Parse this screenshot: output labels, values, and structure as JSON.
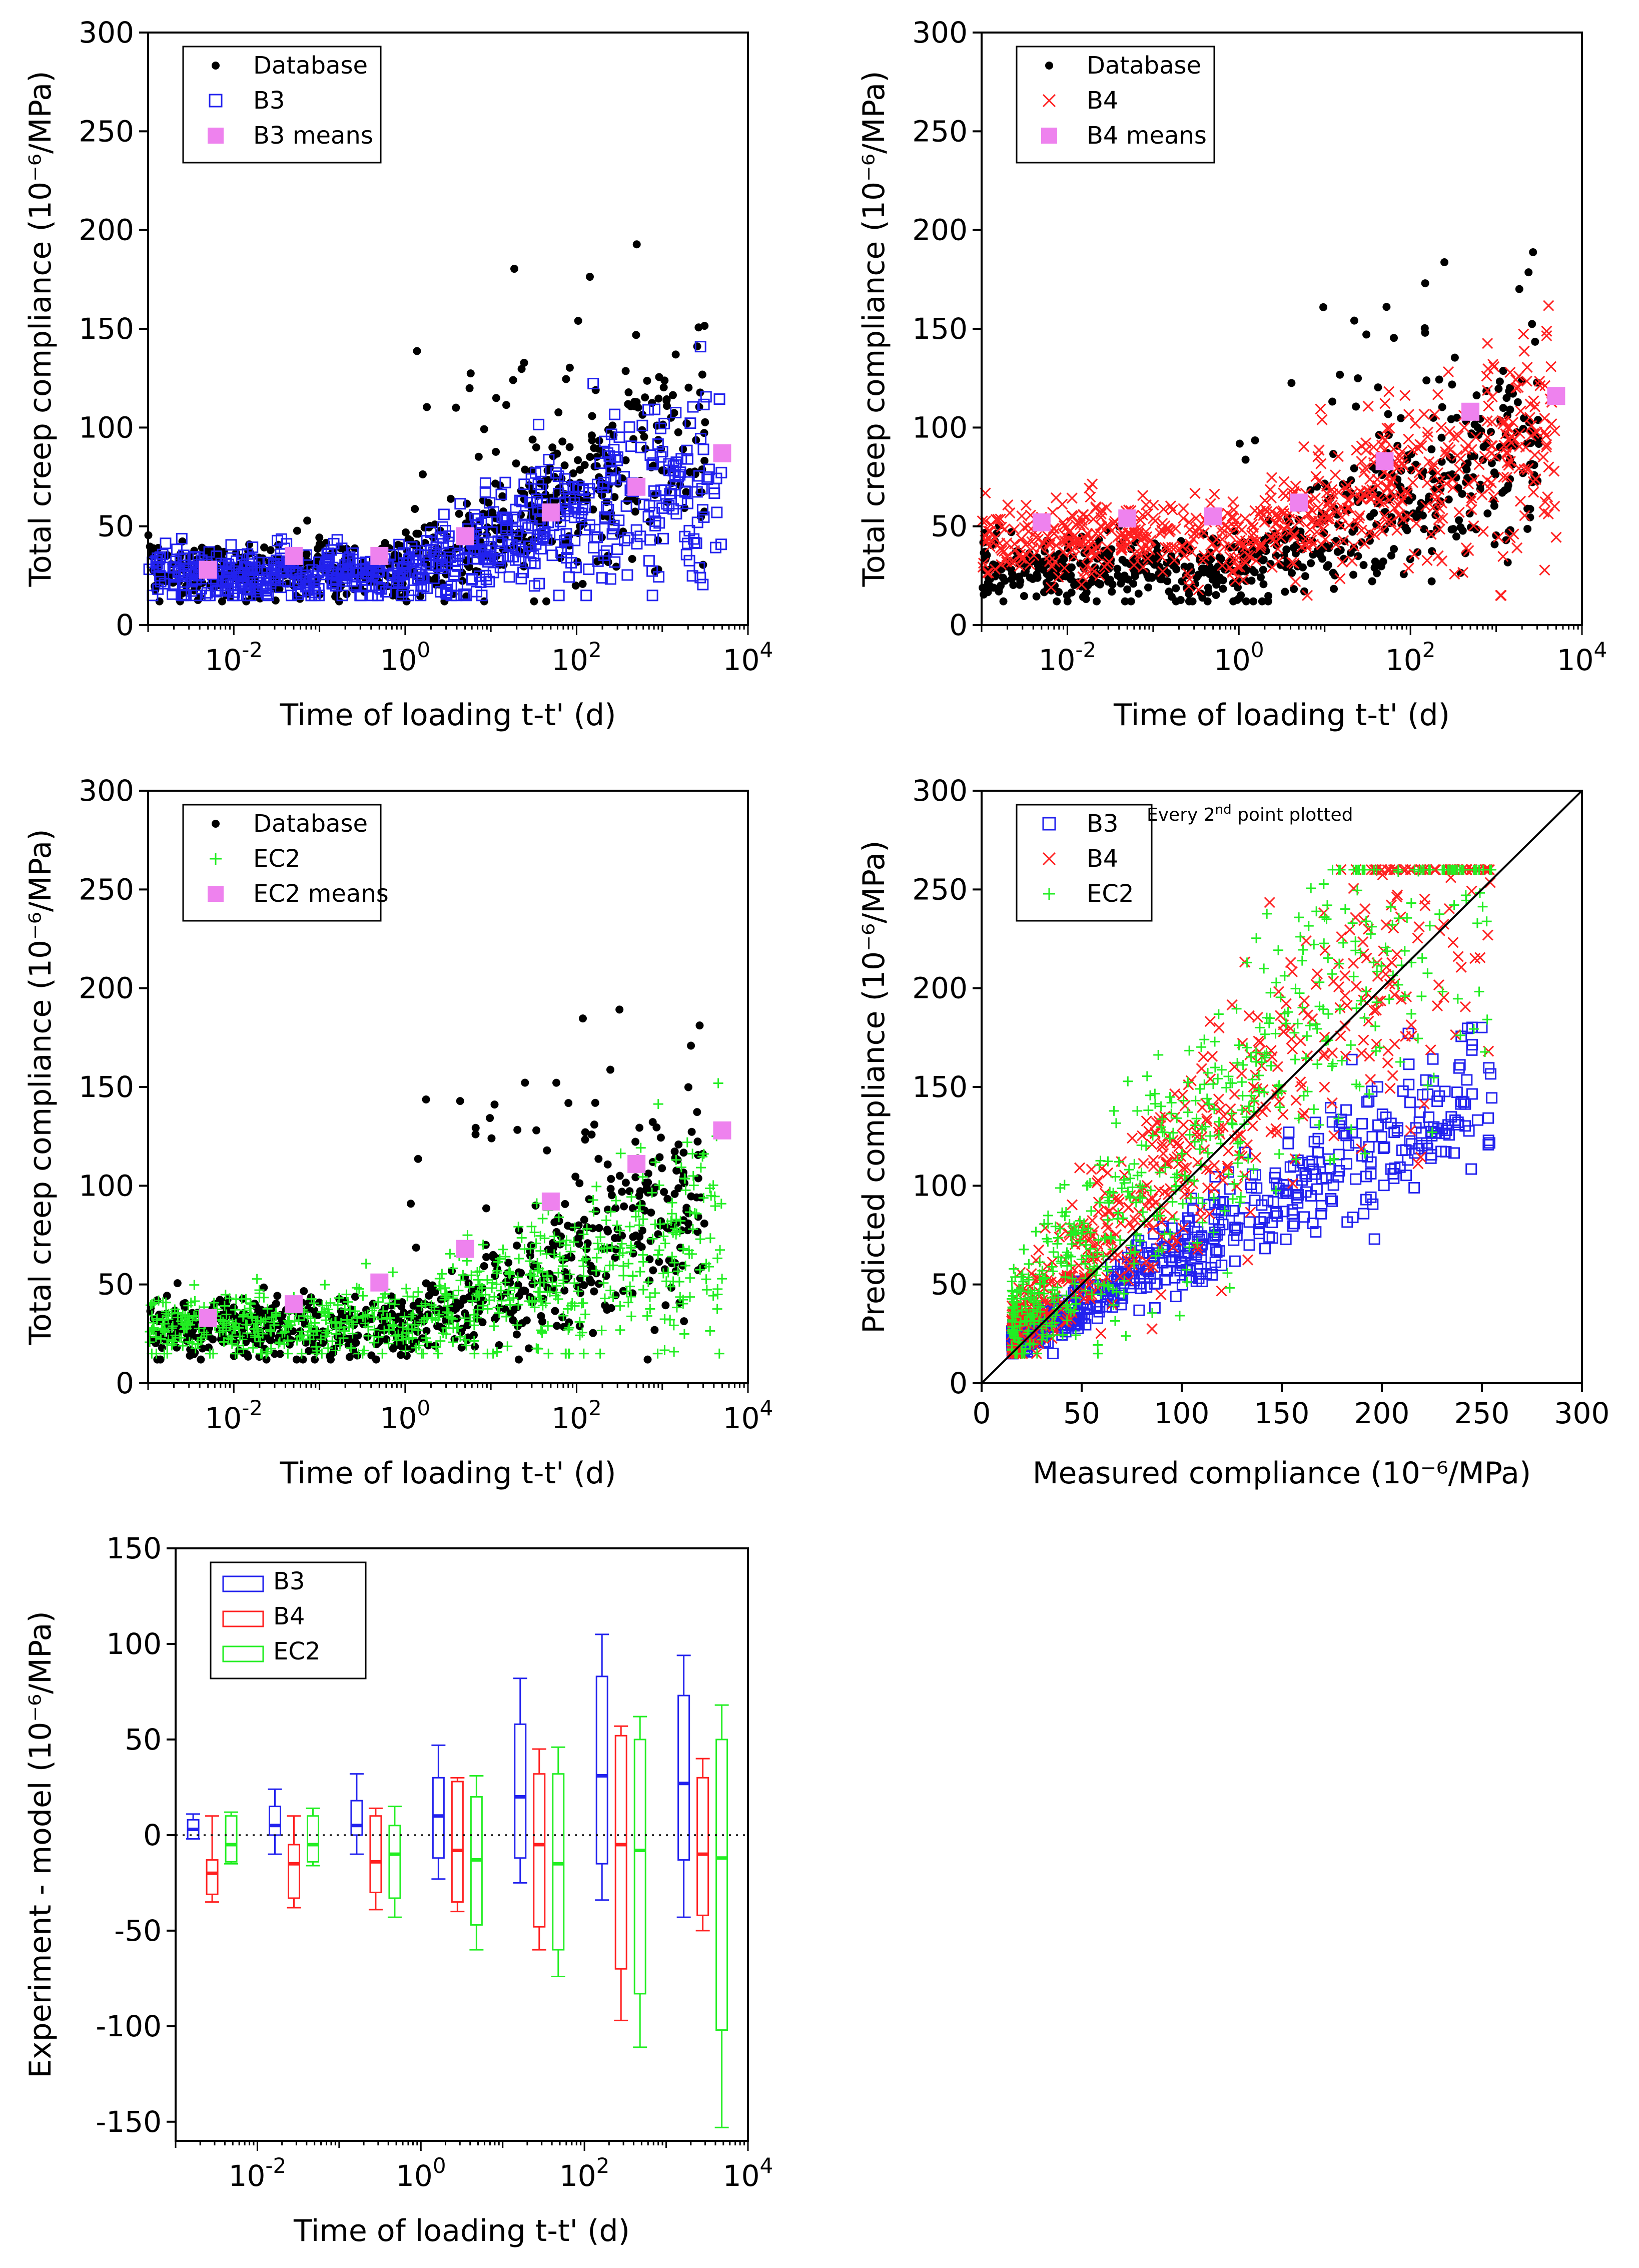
{
  "chart_data": [
    {
      "id": "b3",
      "type": "scatter",
      "xscale": "log",
      "xlim": [
        0.001,
        10000
      ],
      "ylim": [
        0,
        300
      ],
      "xlabel": "Time of loading t-t' (d)",
      "ylabel": "Total creep compliance (10⁻⁶/MPa)",
      "xticks": [
        {
          "v": 0.01,
          "base": "10",
          "exp": "-2"
        },
        {
          "v": 1,
          "base": "10",
          "exp": "0"
        },
        {
          "v": 100,
          "base": "10",
          "exp": "2"
        },
        {
          "v": 10000,
          "base": "10",
          "exp": "4"
        }
      ],
      "yticks": [
        0,
        50,
        100,
        150,
        200,
        250,
        300
      ],
      "legend_position": "top-left",
      "legend": [
        {
          "label": "Database",
          "marker": "dot",
          "color": "#000000"
        },
        {
          "label": "B3",
          "marker": "square-open",
          "color": "#2222ee"
        },
        {
          "label": "B3 means",
          "marker": "square-filled",
          "color": "#ee82ee"
        }
      ],
      "means": {
        "x": [
          0.005,
          0.05,
          0.5,
          5,
          50,
          500,
          5000
        ],
        "y": [
          28,
          35,
          35,
          45,
          57,
          70,
          87
        ]
      }
    },
    {
      "id": "b4",
      "type": "scatter",
      "xscale": "log",
      "xlim": [
        0.001,
        10000
      ],
      "ylim": [
        0,
        300
      ],
      "xlabel": "Time of loading t-t' (d)",
      "ylabel": "Total creep compliance (10⁻⁶/MPa)",
      "xticks": [
        {
          "v": 0.01,
          "base": "10",
          "exp": "-2"
        },
        {
          "v": 1,
          "base": "10",
          "exp": "0"
        },
        {
          "v": 100,
          "base": "10",
          "exp": "2"
        },
        {
          "v": 10000,
          "base": "10",
          "exp": "4"
        }
      ],
      "yticks": [
        0,
        50,
        100,
        150,
        200,
        250,
        300
      ],
      "legend_position": "top-left",
      "legend": [
        {
          "label": "Database",
          "marker": "dot",
          "color": "#000000"
        },
        {
          "label": "B4",
          "marker": "x",
          "color": "#ff2020"
        },
        {
          "label": "B4 means",
          "marker": "square-filled",
          "color": "#ee82ee"
        }
      ],
      "means": {
        "x": [
          0.005,
          0.05,
          0.5,
          5,
          50,
          500,
          5000
        ],
        "y": [
          52,
          54,
          55,
          62,
          83,
          108,
          116
        ]
      }
    },
    {
      "id": "ec2",
      "type": "scatter",
      "xscale": "log",
      "xlim": [
        0.001,
        10000
      ],
      "ylim": [
        0,
        300
      ],
      "xlabel": "Time of loading t-t' (d)",
      "ylabel": "Total creep compliance (10⁻⁶/MPa)",
      "xticks": [
        {
          "v": 0.01,
          "base": "10",
          "exp": "-2"
        },
        {
          "v": 1,
          "base": "10",
          "exp": "0"
        },
        {
          "v": 100,
          "base": "10",
          "exp": "2"
        },
        {
          "v": 10000,
          "base": "10",
          "exp": "4"
        }
      ],
      "yticks": [
        0,
        50,
        100,
        150,
        200,
        250,
        300
      ],
      "legend_position": "top-left",
      "legend": [
        {
          "label": "Database",
          "marker": "dot",
          "color": "#000000"
        },
        {
          "label": "EC2",
          "marker": "plus",
          "color": "#22ee22"
        },
        {
          "label": "EC2 means",
          "marker": "square-filled",
          "color": "#ee82ee"
        }
      ],
      "means": {
        "x": [
          0.005,
          0.05,
          0.5,
          5,
          50,
          500,
          5000
        ],
        "y": [
          33,
          40,
          51,
          68,
          92,
          111,
          128
        ]
      }
    },
    {
      "id": "pred",
      "type": "scatter",
      "xscale": "linear",
      "xlim": [
        0,
        300
      ],
      "ylim": [
        0,
        300
      ],
      "xlabel": "Measured compliance (10⁻⁶/MPa)",
      "ylabel": "Predicted compliance (10⁻⁶/MPa)",
      "xticks": [
        0,
        50,
        100,
        150,
        200,
        250,
        300
      ],
      "yticks": [
        0,
        50,
        100,
        150,
        200,
        250,
        300
      ],
      "legend_position": "top-left",
      "legend": [
        {
          "label": "B3",
          "marker": "square-open",
          "color": "#2222ee"
        },
        {
          "label": "B4",
          "marker": "x",
          "color": "#ff2020"
        },
        {
          "label": "EC2",
          "marker": "plus",
          "color": "#22ee22"
        }
      ],
      "annotation": {
        "before": "Every 2",
        "sup": "nd",
        "after": " point plotted"
      },
      "reference_line": {
        "x": [
          0,
          300
        ],
        "y": [
          0,
          300
        ]
      }
    },
    {
      "id": "box",
      "type": "box",
      "xscale": "log",
      "xlim": [
        0.001,
        10000
      ],
      "ylim": [
        -160,
        150
      ],
      "xlabel": "Time of loading t-t' (d)",
      "ylabel": "Experiment - model (10⁻⁶/MPa)",
      "xticks": [
        {
          "v": 0.01,
          "base": "10",
          "exp": "-2"
        },
        {
          "v": 1,
          "base": "10",
          "exp": "0"
        },
        {
          "v": 100,
          "base": "10",
          "exp": "2"
        },
        {
          "v": 10000,
          "base": "10",
          "exp": "4"
        }
      ],
      "yticks": [
        150,
        100,
        50,
        0,
        -50,
        -100,
        -150
      ],
      "ytick_labels": [
        "150",
        "100",
        "50",
        "0",
        "-50",
        "-100",
        "-150"
      ],
      "legend_position": "top-left",
      "legend": [
        {
          "label": "B3",
          "marker": "box",
          "color": "#2222ee"
        },
        {
          "label": "B4",
          "marker": "box",
          "color": "#ff2020"
        },
        {
          "label": "EC2",
          "marker": "box",
          "color": "#22ee22"
        }
      ],
      "zero_line": "dotted",
      "groups": [
        {
          "x": 0.0028,
          "model": "B3",
          "low": -2,
          "q1": -2,
          "median": 3,
          "q3": 8,
          "high": 11
        },
        {
          "x": 0.0028,
          "model": "B4",
          "low": -35,
          "q1": -31,
          "median": -20,
          "q3": -13,
          "high": 10
        },
        {
          "x": 0.0028,
          "model": "EC2",
          "low": -15,
          "q1": -14,
          "median": -5,
          "q3": 10,
          "high": 12
        },
        {
          "x": 0.028,
          "model": "B3",
          "low": -10,
          "q1": 0,
          "median": 5,
          "q3": 15,
          "high": 24
        },
        {
          "x": 0.028,
          "model": "B4",
          "low": -38,
          "q1": -33,
          "median": -15,
          "q3": -5,
          "high": 10
        },
        {
          "x": 0.028,
          "model": "EC2",
          "low": -16,
          "q1": -14,
          "median": -5,
          "q3": 10,
          "high": 14
        },
        {
          "x": 0.28,
          "model": "B3",
          "low": -10,
          "q1": 0,
          "median": 5,
          "q3": 18,
          "high": 32
        },
        {
          "x": 0.28,
          "model": "B4",
          "low": -39,
          "q1": -30,
          "median": -14,
          "q3": 10,
          "high": 14
        },
        {
          "x": 0.28,
          "model": "EC2",
          "low": -43,
          "q1": -33,
          "median": -10,
          "q3": 5,
          "high": 15
        },
        {
          "x": 2.8,
          "model": "B3",
          "low": -23,
          "q1": -12,
          "median": 10,
          "q3": 30,
          "high": 47
        },
        {
          "x": 2.8,
          "model": "B4",
          "low": -40,
          "q1": -35,
          "median": -8,
          "q3": 28,
          "high": 30
        },
        {
          "x": 2.8,
          "model": "EC2",
          "low": -60,
          "q1": -47,
          "median": -13,
          "q3": 20,
          "high": 31
        },
        {
          "x": 28,
          "model": "B3",
          "low": -25,
          "q1": -12,
          "median": 20,
          "q3": 58,
          "high": 82
        },
        {
          "x": 28,
          "model": "B4",
          "low": -60,
          "q1": -48,
          "median": -5,
          "q3": 32,
          "high": 45
        },
        {
          "x": 28,
          "model": "EC2",
          "low": -74,
          "q1": -60,
          "median": -15,
          "q3": 32,
          "high": 46
        },
        {
          "x": 280,
          "model": "B3",
          "low": -34,
          "q1": -15,
          "median": 31,
          "q3": 83,
          "high": 105
        },
        {
          "x": 280,
          "model": "B4",
          "low": -97,
          "q1": -70,
          "median": -5,
          "q3": 52,
          "high": 57
        },
        {
          "x": 280,
          "model": "EC2",
          "low": -111,
          "q1": -83,
          "median": -8,
          "q3": 50,
          "high": 62
        },
        {
          "x": 2800,
          "model": "B3",
          "low": -43,
          "q1": -13,
          "median": 27,
          "q3": 73,
          "high": 94
        },
        {
          "x": 2800,
          "model": "B4",
          "low": -50,
          "q1": -42,
          "median": -10,
          "q3": 30,
          "high": 40
        },
        {
          "x": 2800,
          "model": "EC2",
          "low": -153,
          "q1": -102,
          "median": -12,
          "q3": 50,
          "high": 68
        }
      ]
    }
  ]
}
